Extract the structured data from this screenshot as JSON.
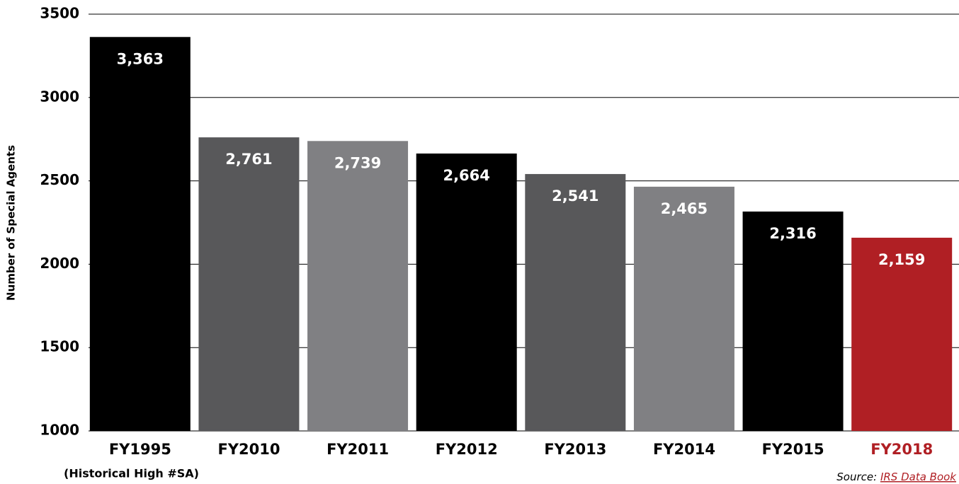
{
  "chart_data": {
    "type": "bar",
    "y_label": "Number of Special Agents",
    "categories": [
      "FY1995",
      "FY2010",
      "FY2011",
      "FY2012",
      "FY2013",
      "FY2014",
      "FY2015",
      "FY2018"
    ],
    "values": [
      3363,
      2761,
      2739,
      2664,
      2541,
      2465,
      2316,
      2159
    ],
    "value_labels": [
      "3,363",
      "2,761",
      "2,739",
      "2,664",
      "2,541",
      "2,465",
      "2,316",
      "2,159"
    ],
    "colors": [
      "#000000",
      "#58585a",
      "#808083",
      "#000000",
      "#58585a",
      "#808083",
      "#000000",
      "#b01f24"
    ],
    "category_colors": [
      "#000000",
      "#000000",
      "#000000",
      "#000000",
      "#000000",
      "#000000",
      "#000000",
      "#b01f24"
    ],
    "annotation": "(Historical High #SA)",
    "source": {
      "label": "Source:",
      "link": "IRS Data Book"
    },
    "ylim": [
      1000,
      3500
    ],
    "yticks": [
      1000,
      1500,
      2000,
      2500,
      3000,
      3500
    ],
    "grid": true
  }
}
